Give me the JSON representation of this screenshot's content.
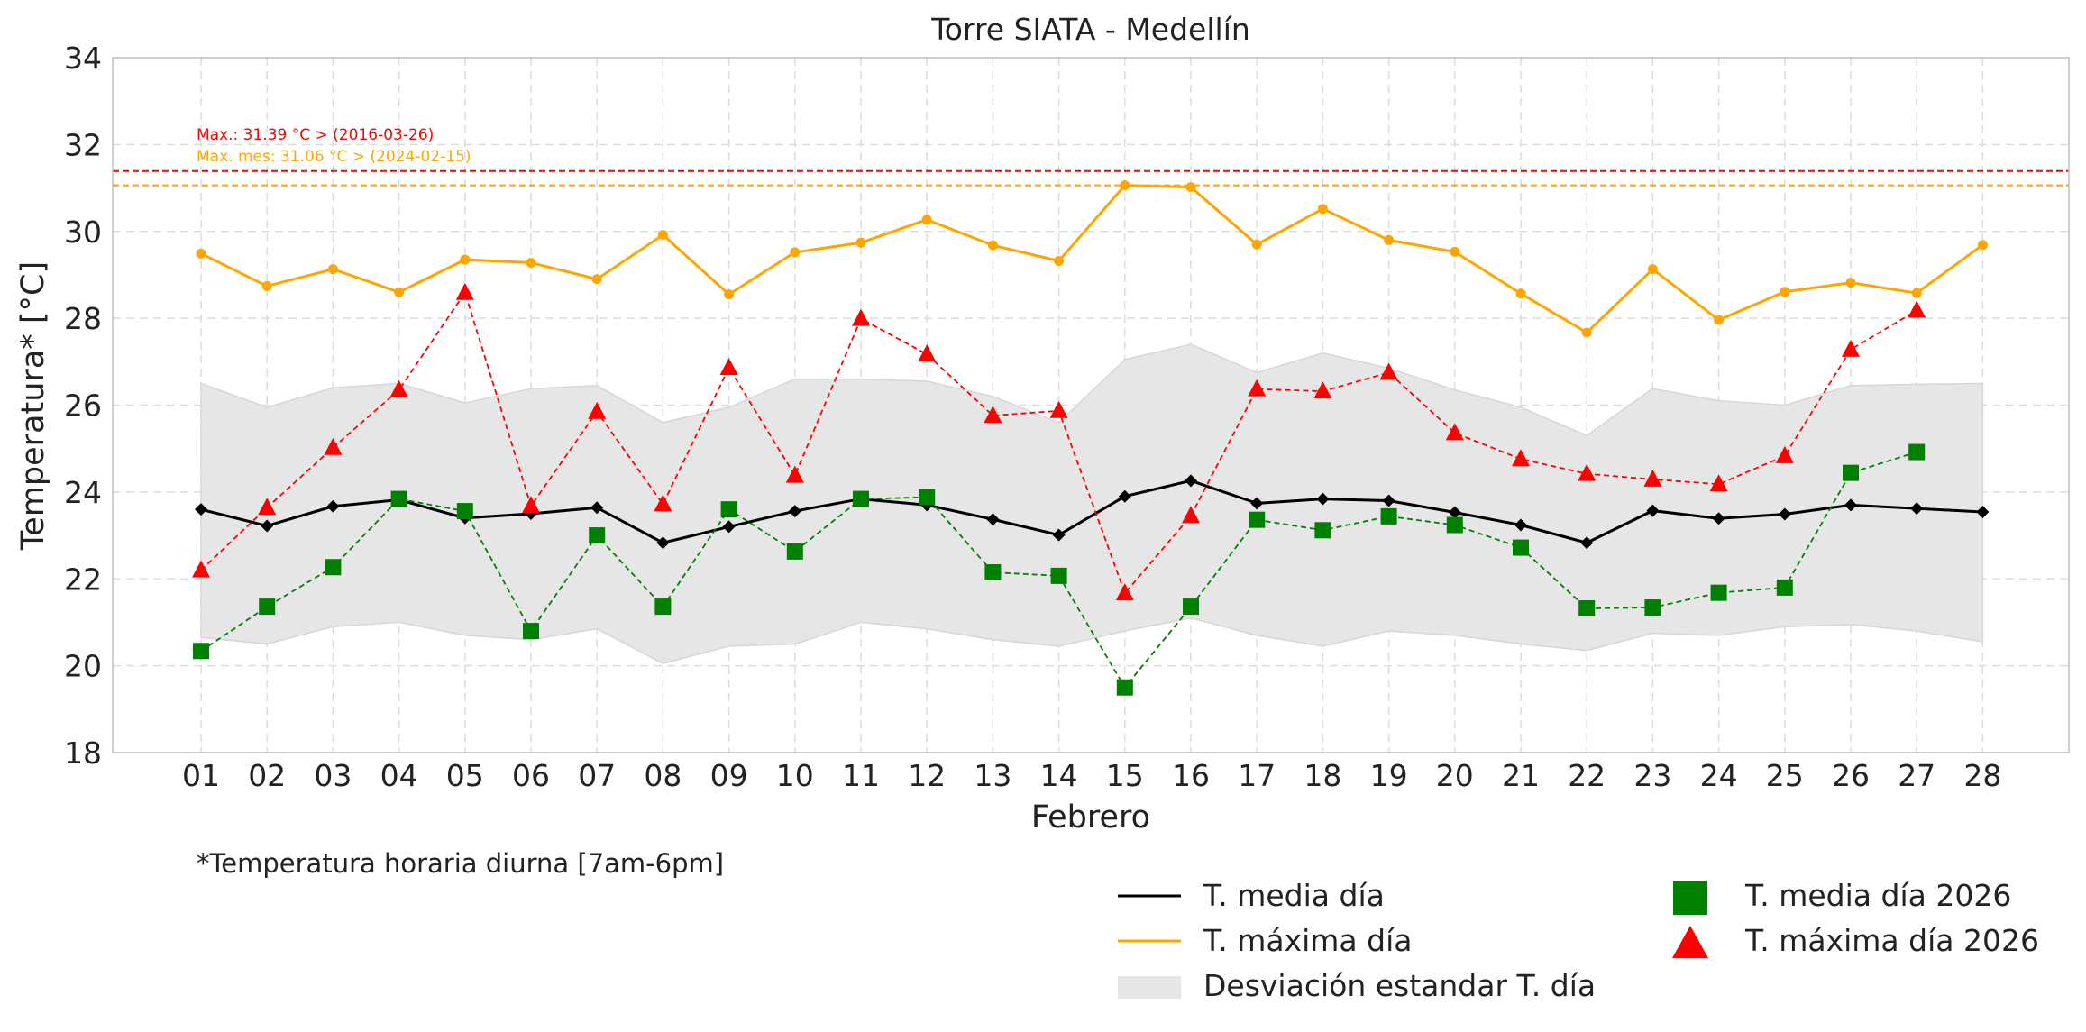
{
  "chart_data": {
    "type": "line",
    "title": "Torre SIATA - Medellín",
    "xlabel": "Febrero",
    "ylabel": "Temperatura* [°C]",
    "ylim": [
      18,
      34
    ],
    "yticks": [
      18,
      20,
      22,
      24,
      26,
      28,
      30,
      32,
      34
    ],
    "grid": true,
    "legend_position": "bottom-right",
    "categories": [
      "01",
      "02",
      "03",
      "04",
      "05",
      "06",
      "07",
      "08",
      "09",
      "10",
      "11",
      "12",
      "13",
      "14",
      "15",
      "16",
      "17",
      "18",
      "19",
      "20",
      "21",
      "22",
      "23",
      "24",
      "25",
      "26",
      "27",
      "28"
    ],
    "footnote": "*Temperatura horaria diurna [7am-6pm]",
    "reference_lines": [
      {
        "value": 31.39,
        "label": "Max.: 31.39 °C  >  (2016-03-26)",
        "color": "#ff0000"
      },
      {
        "value": 31.06,
        "label": "Max. mes: 31.06 °C  >  (2024-02-15)",
        "color": "#ffa500"
      }
    ],
    "band": {
      "name": "Desviación estandar T. día",
      "color": "#e6e6e6",
      "upper": [
        26.5,
        25.95,
        26.4,
        26.5,
        26.05,
        26.38,
        26.45,
        25.6,
        25.95,
        26.6,
        26.6,
        26.55,
        26.2,
        25.6,
        27.05,
        27.4,
        26.75,
        27.2,
        26.85,
        26.35,
        25.95,
        25.3,
        26.38,
        26.1,
        26.0,
        26.45,
        26.48,
        26.5
      ],
      "lower": [
        20.65,
        20.5,
        20.9,
        21.0,
        20.7,
        20.6,
        20.85,
        20.05,
        20.45,
        20.5,
        21.0,
        20.85,
        20.6,
        20.45,
        20.8,
        21.1,
        20.7,
        20.45,
        20.8,
        20.7,
        20.5,
        20.35,
        20.75,
        20.7,
        20.9,
        20.95,
        20.8,
        20.55
      ]
    },
    "series": [
      {
        "name": "T. media día",
        "color": "#000000",
        "style": "solid",
        "marker": "diamond",
        "values": [
          23.6,
          23.22,
          23.67,
          23.82,
          23.4,
          23.5,
          23.64,
          22.83,
          23.2,
          23.56,
          23.84,
          23.7,
          23.37,
          23.01,
          23.9,
          24.26,
          23.74,
          23.84,
          23.8,
          23.53,
          23.24,
          22.83,
          23.57,
          23.39,
          23.49,
          23.7,
          23.62,
          23.54
        ]
      },
      {
        "name": "T. máxima día",
        "color": "#ffa500",
        "style": "solid",
        "marker": "circle",
        "values": [
          29.49,
          28.74,
          29.13,
          28.6,
          29.35,
          29.28,
          28.9,
          29.92,
          28.55,
          29.52,
          29.74,
          30.27,
          29.68,
          29.32,
          31.06,
          31.02,
          29.7,
          30.52,
          29.8,
          29.53,
          28.57,
          27.67,
          29.13,
          27.96,
          28.61,
          28.82,
          28.58,
          29.69
        ]
      },
      {
        "name": "T. media día 2026",
        "color": "#008000",
        "style": "dashed",
        "marker": "square",
        "values": [
          20.34,
          21.36,
          22.27,
          23.84,
          23.56,
          20.8,
          23.0,
          21.36,
          23.6,
          22.63,
          23.84,
          23.88,
          22.15,
          22.07,
          19.5,
          21.36,
          23.36,
          23.12,
          23.44,
          23.24,
          22.72,
          21.32,
          21.34,
          21.68,
          21.8,
          24.44,
          24.92,
          null
        ]
      },
      {
        "name": "T. máxima día 2026",
        "color": "#ff0000",
        "style": "dashed",
        "marker": "triangle",
        "values": [
          22.2,
          23.64,
          25.02,
          26.35,
          28.59,
          23.68,
          25.85,
          23.72,
          26.86,
          24.38,
          27.99,
          27.17,
          25.76,
          25.87,
          21.67,
          23.45,
          26.37,
          26.32,
          26.75,
          25.36,
          24.76,
          24.42,
          24.29,
          24.18,
          24.83,
          27.28,
          28.18,
          null
        ]
      }
    ]
  }
}
